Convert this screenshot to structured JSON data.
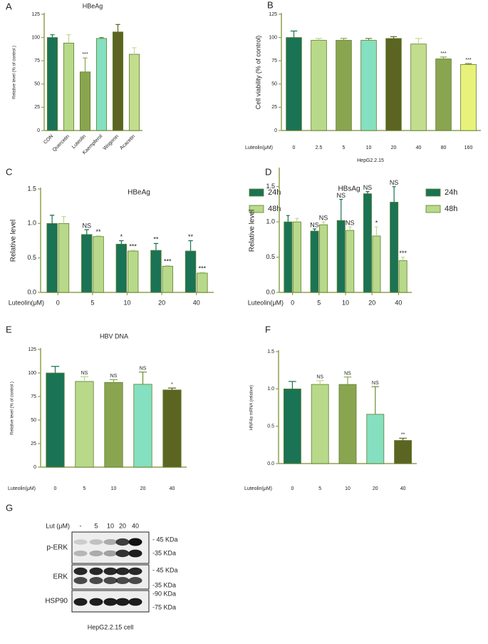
{
  "chart_data": [
    {
      "type": "bar",
      "panel": "A",
      "title": "HBeAg",
      "y_label": "Relative level (% of control )",
      "categories": [
        "CON",
        "Quercetin",
        "Luteolin",
        "Kaempferol",
        "Wogonin",
        "Acacetin"
      ],
      "series": [
        {
          "colors": [
            "#1a7355",
            "#b8d98a",
            "#8aa550",
            "#84e0c0",
            "#5c6421",
            "#c2dd8e"
          ],
          "values": [
            100,
            94,
            63,
            99,
            106,
            82
          ],
          "errors": [
            3,
            9,
            15,
            1,
            8,
            7
          ],
          "annotations": [
            null,
            null,
            "***",
            null,
            null,
            null
          ]
        }
      ],
      "ylim": [
        0,
        125
      ],
      "yticks": [
        0,
        25,
        50,
        75,
        100,
        125
      ]
    },
    {
      "type": "bar",
      "panel": "B",
      "y_label": "Cell viability (% of control)",
      "x_label": "Luteolin(μM)",
      "subtitle": "HepG2.2.15",
      "categories": [
        "0",
        "2.5",
        "5",
        "10",
        "20",
        "40",
        "80",
        "160"
      ],
      "series": [
        {
          "colors": [
            "#1a7355",
            "#b8d98a",
            "#8aa550",
            "#84e0c0",
            "#5c6421",
            "#c2dd8e",
            "#8aa550",
            "#e8f27a"
          ],
          "values": [
            100,
            97,
            97,
            97,
            99,
            93,
            77,
            71
          ],
          "errors": [
            7,
            2,
            2,
            2,
            2,
            6,
            2,
            1
          ],
          "annotations": [
            null,
            null,
            null,
            null,
            null,
            null,
            "***",
            "***"
          ]
        }
      ],
      "ylim": [
        0,
        125
      ],
      "yticks": [
        0,
        25,
        50,
        75,
        100,
        125
      ]
    },
    {
      "type": "bar",
      "panel": "C",
      "title": "HBeAg",
      "y_label": "Relative level",
      "x_label": "Luteolin(μM)",
      "categories": [
        "0",
        "5",
        "10",
        "20",
        "40"
      ],
      "series": [
        {
          "name": "24h",
          "color": "#1a7355",
          "values": [
            1.0,
            0.84,
            0.7,
            0.61,
            0.6
          ],
          "errors": [
            0.12,
            0.07,
            0.05,
            0.1,
            0.15
          ],
          "annotations": [
            null,
            "NS",
            "*",
            "**",
            "**"
          ]
        },
        {
          "name": "48h",
          "color": "#b8d98a",
          "values": [
            1.0,
            0.81,
            0.6,
            0.38,
            0.28
          ],
          "errors": [
            0.1,
            0.01,
            0.01,
            0.01,
            0.01
          ],
          "annotations": [
            null,
            "**",
            "***",
            "***",
            "***"
          ]
        }
      ],
      "ylim": [
        0,
        1.5
      ],
      "yticks": [
        {
          "value": 0,
          "label": "0.0"
        },
        {
          "value": 0.5,
          "label": "0.5"
        },
        {
          "value": 1,
          "label": "1.0"
        },
        {
          "value": 1.5,
          "label": "1.5"
        }
      ]
    },
    {
      "type": "bar",
      "panel": "D",
      "title": "HBsAg",
      "y_label": "Relative level",
      "x_label": "Luteolin(μM)",
      "categories": [
        "0",
        "5",
        "10",
        "20",
        "40"
      ],
      "series": [
        {
          "name": "24h",
          "color": "#1a7355",
          "values": [
            1.0,
            0.87,
            1.02,
            1.4,
            1.28
          ],
          "errors": [
            0.09,
            0.03,
            0.3,
            0.03,
            0.22
          ],
          "annotations": [
            null,
            "NS",
            "NS",
            "NS",
            "NS"
          ]
        },
        {
          "name": "48h",
          "color": "#b8d98a",
          "values": [
            1.0,
            0.96,
            0.88,
            0.8,
            0.45
          ],
          "errors": [
            0.05,
            0.04,
            0.05,
            0.13,
            0.05
          ],
          "annotations": [
            null,
            "NS",
            "NS",
            "*",
            "***"
          ]
        }
      ],
      "ylim": [
        0,
        1.75
      ],
      "yticks": [
        {
          "value": 0,
          "label": "0.0"
        },
        {
          "value": 0.5,
          "label": "0.5"
        },
        {
          "value": 1,
          "label": "1.0"
        },
        {
          "value": 1.5,
          "label": "1.5"
        }
      ]
    },
    {
      "type": "bar",
      "panel": "E",
      "title": "HBV DNA",
      "y_label": "Relative level (% of control )",
      "x_label": "Luteolin(μM)",
      "categories": [
        "0",
        "5",
        "10",
        "20",
        "40"
      ],
      "series": [
        {
          "colors": [
            "#1a7355",
            "#b8d98a",
            "#8aa550",
            "#84e0c0",
            "#5c6421"
          ],
          "values": [
            100,
            91,
            90,
            88,
            82
          ],
          "errors": [
            7,
            5,
            3,
            13,
            2
          ],
          "annotations": [
            null,
            "NS",
            "NS",
            "NS",
            "*"
          ]
        }
      ],
      "ylim": [
        0,
        125
      ],
      "yticks": [
        0,
        25,
        50,
        75,
        100,
        125
      ]
    },
    {
      "type": "bar",
      "panel": "F",
      "y_label": "HNF4α mRNA (relative)",
      "x_label": "Luteolin(μM)",
      "categories": [
        "0",
        "5",
        "10",
        "20",
        "40"
      ],
      "series": [
        {
          "colors": [
            "#1a7355",
            "#b8d98a",
            "#8aa550",
            "#84e0c0",
            "#5c6421"
          ],
          "values": [
            1.0,
            1.06,
            1.06,
            0.66,
            0.31
          ],
          "errors": [
            0.1,
            0.05,
            0.1,
            0.37,
            0.03
          ],
          "annotations": [
            null,
            "NS",
            "NS",
            "NS",
            "**"
          ]
        }
      ],
      "ylim": [
        0,
        1.5
      ],
      "yticks": [
        {
          "value": 0,
          "label": "0.0"
        },
        {
          "value": 0.5,
          "label": "0.5"
        },
        {
          "value": 1,
          "label": "1.0"
        },
        {
          "value": 1.5,
          "label": "1.5"
        }
      ]
    }
  ],
  "blot": {
    "panel": "G",
    "lane_title": "Lut (μM)",
    "lanes": [
      "-",
      "5",
      "10",
      "20",
      "40"
    ],
    "rows": [
      {
        "label": "p-ERK",
        "markers": [
          "- 45 KDa",
          "-35 KDa"
        ]
      },
      {
        "label": "ERK",
        "markers": [
          "- 45 KDa",
          "-35 KDa"
        ]
      },
      {
        "label": "HSP90",
        "markers": [
          "-90 KDa",
          "-75 KDa"
        ]
      }
    ],
    "caption": "HepG2.2.15 cell"
  }
}
